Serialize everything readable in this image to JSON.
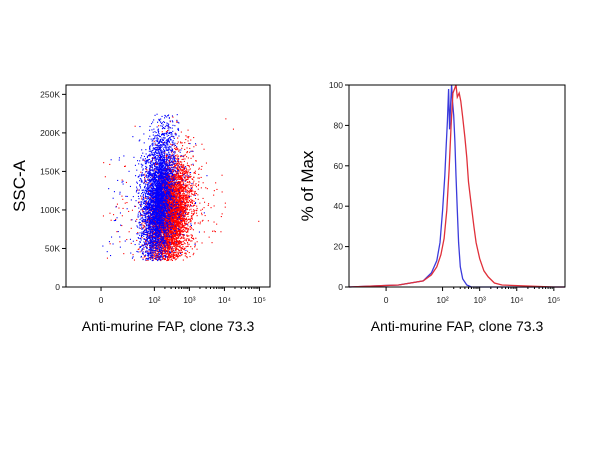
{
  "chart_data": [
    {
      "type": "scatter",
      "xlabel": "Anti-murine FAP, clone 73.3",
      "ylabel": "SSC-A",
      "x_scale": "biexponential",
      "xlim": [
        -30,
        200000
      ],
      "ylim": [
        0,
        262144
      ],
      "x_ticks": [
        {
          "value": 0,
          "label": "0"
        },
        {
          "value": 100,
          "label": "10²"
        },
        {
          "value": 1000,
          "label": "10³"
        },
        {
          "value": 10000,
          "label": "10⁴"
        },
        {
          "value": 100000,
          "label": "10⁵"
        }
      ],
      "y_ticks": [
        {
          "value": 0,
          "label": "0"
        },
        {
          "value": 50000,
          "label": "50K"
        },
        {
          "value": 100000,
          "label": "100K"
        },
        {
          "value": 150000,
          "label": "150K"
        },
        {
          "value": 200000,
          "label": "200K"
        },
        {
          "value": 250000,
          "label": "250K"
        }
      ],
      "series": [
        {
          "color": "#ff0000",
          "population": {
            "x_center": 270,
            "x_spread_decades": 0.28,
            "y_center": 95000,
            "y_spread": 35000,
            "events": 5200
          }
        },
        {
          "color": "#0000ff",
          "population": {
            "x_center": 120,
            "x_spread_decades": 0.22,
            "y_center": 115000,
            "y_spread": 45000,
            "events": 3800
          }
        }
      ]
    },
    {
      "type": "line",
      "xlabel": "Anti-murine FAP, clone 73.3",
      "ylabel": "% of Max",
      "x_scale": "biexponential",
      "xlim": [
        -30,
        200000
      ],
      "ylim": [
        0,
        100
      ],
      "x_ticks": [
        {
          "value": 0,
          "label": "0"
        },
        {
          "value": 100,
          "label": "10²"
        },
        {
          "value": 1000,
          "label": "10³"
        },
        {
          "value": 10000,
          "label": "10⁴"
        },
        {
          "value": 100000,
          "label": "10⁵"
        }
      ],
      "y_ticks": [
        {
          "value": 0,
          "label": "0"
        },
        {
          "value": 20,
          "label": "20"
        },
        {
          "value": 40,
          "label": "40"
        },
        {
          "value": 60,
          "label": "60"
        },
        {
          "value": 80,
          "label": "80"
        },
        {
          "value": 100,
          "label": "100"
        }
      ],
      "series": [
        {
          "color": "#3b3bdc",
          "x": [
            -30,
            10,
            30,
            50,
            70,
            85,
            100,
            115,
            125,
            135,
            145,
            155,
            165,
            175,
            185,
            200,
            215,
            230,
            250,
            270,
            300,
            350,
            450,
            600,
            1000,
            100000,
            200000
          ],
          "y": [
            0,
            1,
            3,
            7,
            13,
            22,
            38,
            55,
            70,
            82,
            98,
            78,
            90,
            100,
            92,
            85,
            72,
            55,
            38,
            22,
            10,
            4,
            1,
            0,
            0,
            0,
            0
          ]
        },
        {
          "color": "#e0303a",
          "x": [
            -30,
            10,
            30,
            50,
            70,
            90,
            110,
            130,
            150,
            170,
            190,
            210,
            230,
            250,
            280,
            310,
            350,
            400,
            450,
            500,
            600,
            700,
            800,
            1000,
            1300,
            1700,
            2500,
            4000,
            100000,
            200000
          ],
          "y": [
            0,
            1,
            3,
            6,
            10,
            16,
            24,
            38,
            58,
            80,
            96,
            98,
            100,
            94,
            96,
            92,
            84,
            74,
            64,
            52,
            40,
            30,
            22,
            14,
            8,
            5,
            2,
            1,
            0,
            0
          ]
        }
      ]
    }
  ]
}
